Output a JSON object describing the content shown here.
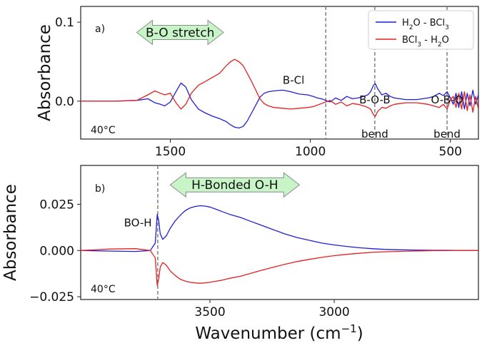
{
  "chart_data": [
    {
      "panel": "a)",
      "type": "line",
      "xlabel": "",
      "ylabel": "Absorbance",
      "xlim": [
        1820,
        400
      ],
      "ylim": [
        -0.048,
        0.12
      ],
      "x_ticks": [
        {
          "value": 1500,
          "label": "1500"
        },
        {
          "value": 1000,
          "label": "1000"
        },
        {
          "value": 500,
          "label": "500"
        }
      ],
      "y_ticks": [
        {
          "value": 0.0,
          "label": "0.0"
        },
        {
          "value": 0.1,
          "label": "0.1"
        }
      ],
      "temperature_label": "40°C",
      "banner": {
        "text": "B-O stretch",
        "x_from": 1620,
        "x_to": 1310,
        "y": 0.087
      },
      "dashed_lines_x": [
        945,
        770,
        512
      ],
      "annotations": [
        {
          "text": "B-Cl",
          "x": 1060,
          "y": 0.022
        },
        {
          "text": "B-O-B",
          "x": 770,
          "y": -0.003
        },
        {
          "text": "bend",
          "x": 770,
          "y": -0.046
        },
        {
          "text": "O-B-O",
          "x": 512,
          "y": -0.003
        },
        {
          "text": "bend",
          "x": 512,
          "y": -0.046
        }
      ],
      "legend": {
        "position": "top-right",
        "entries": [
          {
            "main": "H",
            "sub": "2",
            "rest": "O - BCl",
            "sub2": "3",
            "rest2": ""
          },
          {
            "main": "BCl",
            "sub": "3",
            "rest": " - H",
            "sub2": "2",
            "rest2": "O"
          }
        ]
      },
      "series": [
        {
          "color": "#1f1fd6",
          "x": [
            1820,
            1700,
            1620,
            1580,
            1555,
            1535,
            1520,
            1500,
            1480,
            1462,
            1445,
            1425,
            1400,
            1375,
            1350,
            1325,
            1300,
            1285,
            1270,
            1255,
            1240,
            1225,
            1210,
            1195,
            1180,
            1165,
            1150,
            1130,
            1100,
            1070,
            1040,
            1010,
            990,
            975,
            960,
            945,
            930,
            910,
            890,
            870,
            850,
            830,
            810,
            795,
            785,
            775,
            768,
            760,
            745,
            730,
            715,
            700,
            680,
            660,
            640,
            620,
            600,
            580,
            560,
            540,
            525,
            512,
            500,
            490,
            480,
            470,
            460,
            450,
            440,
            430,
            420,
            410,
            400
          ],
          "y": [
            0,
            0,
            0.001,
            0.003,
            -0.002,
            -0.004,
            -0.006,
            -0.001,
            0.012,
            0.023,
            0.018,
            0.002,
            -0.01,
            -0.015,
            -0.019,
            -0.022,
            -0.026,
            -0.03,
            -0.033,
            -0.034,
            -0.032,
            -0.025,
            -0.015,
            -0.005,
            0.005,
            0.01,
            0.012,
            0.013,
            0.014,
            0.012,
            0.009,
            0.008,
            0.006,
            0.004,
            0.003,
            0.001,
            -0.001,
            0.004,
            0.001,
            0.006,
            0.003,
            0.004,
            0.006,
            0.008,
            0.012,
            0.02,
            0.022,
            0.016,
            0.008,
            0.01,
            0.006,
            0.004,
            0.003,
            0.002,
            0.002,
            0.002,
            0.003,
            0.004,
            0.006,
            0.01,
            0.007,
            0.012,
            0.004,
            -0.004,
            0.01,
            -0.008,
            0.012,
            -0.01,
            0.01,
            -0.006,
            0.014,
            -0.004,
            0.008
          ]
        },
        {
          "color": "#e32020",
          "x": [
            1820,
            1700,
            1620,
            1580,
            1555,
            1535,
            1520,
            1500,
            1480,
            1462,
            1445,
            1425,
            1400,
            1375,
            1350,
            1325,
            1300,
            1285,
            1270,
            1255,
            1240,
            1225,
            1210,
            1195,
            1180,
            1165,
            1150,
            1130,
            1100,
            1070,
            1040,
            1010,
            990,
            975,
            960,
            945,
            930,
            910,
            890,
            870,
            850,
            830,
            810,
            795,
            785,
            775,
            768,
            760,
            745,
            730,
            715,
            700,
            680,
            660,
            640,
            620,
            600,
            580,
            560,
            540,
            525,
            512,
            500,
            490,
            480,
            470,
            460,
            450,
            440,
            430,
            420,
            410,
            400
          ],
          "y": [
            0,
            0,
            0.001,
            0.008,
            0.013,
            0.01,
            0.008,
            0.01,
            -0.002,
            -0.01,
            -0.004,
            0.01,
            0.02,
            0.025,
            0.03,
            0.035,
            0.045,
            0.05,
            0.053,
            0.05,
            0.045,
            0.035,
            0.025,
            0.014,
            0.003,
            -0.003,
            -0.006,
            -0.008,
            -0.009,
            -0.01,
            -0.009,
            -0.008,
            -0.007,
            -0.005,
            -0.003,
            -0.001,
            0.001,
            -0.004,
            -0.001,
            -0.006,
            -0.003,
            -0.004,
            -0.006,
            -0.008,
            -0.01,
            -0.017,
            -0.019,
            -0.013,
            -0.008,
            -0.009,
            -0.006,
            -0.004,
            -0.003,
            -0.002,
            -0.002,
            -0.002,
            -0.003,
            -0.004,
            -0.006,
            -0.008,
            -0.004,
            -0.01,
            0.002,
            0.006,
            -0.008,
            0.01,
            -0.01,
            0.012,
            -0.012,
            0.008,
            -0.014,
            0.006,
            -0.01
          ]
        }
      ]
    },
    {
      "panel": "b)",
      "type": "line",
      "xlabel": "Wavenumber (cm−1)",
      "xlabel_parts": {
        "main": "Wavenumber (cm",
        "sup": "−1",
        "end": ")"
      },
      "ylabel": "Absorbance",
      "xlim": [
        4020,
        2420
      ],
      "ylim": [
        -0.0265,
        0.046
      ],
      "x_ticks": [
        {
          "value": 3500,
          "label": "3500"
        },
        {
          "value": 3000,
          "label": "3000"
        }
      ],
      "y_ticks": [
        {
          "value": -0.025,
          "label": "−0.025"
        },
        {
          "value": 0.0,
          "label": "0.000"
        },
        {
          "value": 0.025,
          "label": "0.025"
        }
      ],
      "temperature_label": "40°C",
      "banner": {
        "text": "H-Bonded O-H",
        "x_from": 3660,
        "x_to": 3140,
        "y": 0.0355
      },
      "dashed_lines_x": [
        3710
      ],
      "annotations": [
        {
          "text": "BO-H",
          "x": 3790,
          "y": 0.013
        }
      ],
      "series": [
        {
          "color": "#1f1fd6",
          "x": [
            4020,
            3900,
            3800,
            3740,
            3720,
            3712,
            3706,
            3700,
            3690,
            3675,
            3660,
            3640,
            3620,
            3600,
            3580,
            3560,
            3540,
            3520,
            3500,
            3480,
            3450,
            3420,
            3380,
            3340,
            3300,
            3250,
            3200,
            3150,
            3100,
            3050,
            3000,
            2950,
            2900,
            2850,
            2800,
            2750,
            2700,
            2650,
            2600,
            2550,
            2500,
            2450,
            2420
          ],
          "y": [
            0.0,
            -0.0003,
            -0.0005,
            0.0,
            0.004,
            0.0195,
            0.016,
            0.009,
            0.006,
            0.008,
            0.012,
            0.016,
            0.019,
            0.0215,
            0.023,
            0.0238,
            0.0242,
            0.024,
            0.0235,
            0.0225,
            0.021,
            0.0195,
            0.018,
            0.016,
            0.014,
            0.0115,
            0.009,
            0.007,
            0.0055,
            0.004,
            0.003,
            0.0022,
            0.0015,
            0.001,
            0.0006,
            0.0004,
            0.0003,
            0.0002,
            0.0001,
            0.0001,
            0.0,
            0.0,
            0.0
          ]
        },
        {
          "color": "#e32020",
          "x": [
            4020,
            3900,
            3800,
            3740,
            3720,
            3712,
            3706,
            3700,
            3690,
            3675,
            3660,
            3640,
            3620,
            3600,
            3580,
            3560,
            3540,
            3520,
            3500,
            3480,
            3450,
            3420,
            3380,
            3340,
            3300,
            3250,
            3200,
            3150,
            3100,
            3050,
            3000,
            2950,
            2900,
            2850,
            2800,
            2750,
            2700,
            2650,
            2600,
            2550,
            2500,
            2450,
            2420
          ],
          "y": [
            0.0,
            0.0008,
            0.001,
            0.0,
            -0.004,
            -0.019,
            -0.015,
            -0.009,
            -0.0065,
            -0.008,
            -0.011,
            -0.0135,
            -0.0155,
            -0.0165,
            -0.0172,
            -0.0175,
            -0.0177,
            -0.0175,
            -0.0172,
            -0.0167,
            -0.016,
            -0.015,
            -0.014,
            -0.0125,
            -0.011,
            -0.0092,
            -0.0075,
            -0.006,
            -0.0048,
            -0.0037,
            -0.0028,
            -0.0021,
            -0.0015,
            -0.001,
            -0.0007,
            -0.0005,
            -0.0003,
            -0.0002,
            -0.0001,
            -0.0001,
            0.0,
            0.0,
            0.0
          ]
        }
      ]
    }
  ]
}
